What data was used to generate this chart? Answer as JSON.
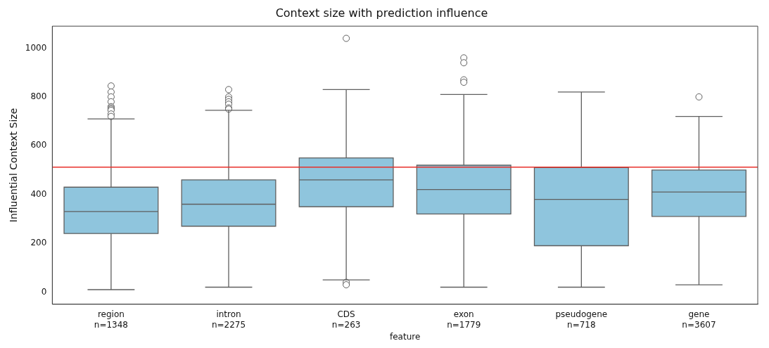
{
  "chart_data": {
    "type": "box",
    "title": "Context size with prediction influence",
    "xlabel": "feature",
    "ylabel": "Influential Context Size",
    "categories": [
      "region\nn=1348",
      "intron\nn=2275",
      "CDS\nn=263",
      "exon\nn=1779",
      "pseudogene\nn=718",
      "gene\nn=3607"
    ],
    "color": "#8fc5dd",
    "boxes": [
      {
        "low": 10,
        "q1": 240,
        "median": 330,
        "q3": 430,
        "high": 710,
        "outliers": [
          720,
          730,
          745,
          750,
          755,
          760,
          780,
          800,
          820,
          845
        ]
      },
      {
        "low": 20,
        "q1": 270,
        "median": 360,
        "q3": 460,
        "high": 745,
        "outliers": [
          750,
          755,
          770,
          780,
          790,
          800,
          830
        ]
      },
      {
        "low": 50,
        "q1": 350,
        "median": 460,
        "q3": 550,
        "high": 830,
        "outliers": [
          30,
          40,
          1040
        ]
      },
      {
        "low": 20,
        "q1": 320,
        "median": 420,
        "q3": 520,
        "high": 810,
        "outliers": [
          860,
          870,
          940,
          960
        ]
      },
      {
        "low": 20,
        "q1": 190,
        "median": 380,
        "q3": 510,
        "high": 820
      },
      {
        "low": 30,
        "q1": 310,
        "median": 410,
        "q3": 500,
        "high": 720,
        "outliers": [
          800
        ]
      }
    ],
    "ylim": [
      -50,
      1090
    ],
    "yticks": [
      0,
      200,
      400,
      600,
      800,
      1000
    ],
    "ref_lines": [
      {
        "axis": "y",
        "value": 512,
        "color": "#e8302a"
      }
    ],
    "legend": false,
    "grid": false
  }
}
